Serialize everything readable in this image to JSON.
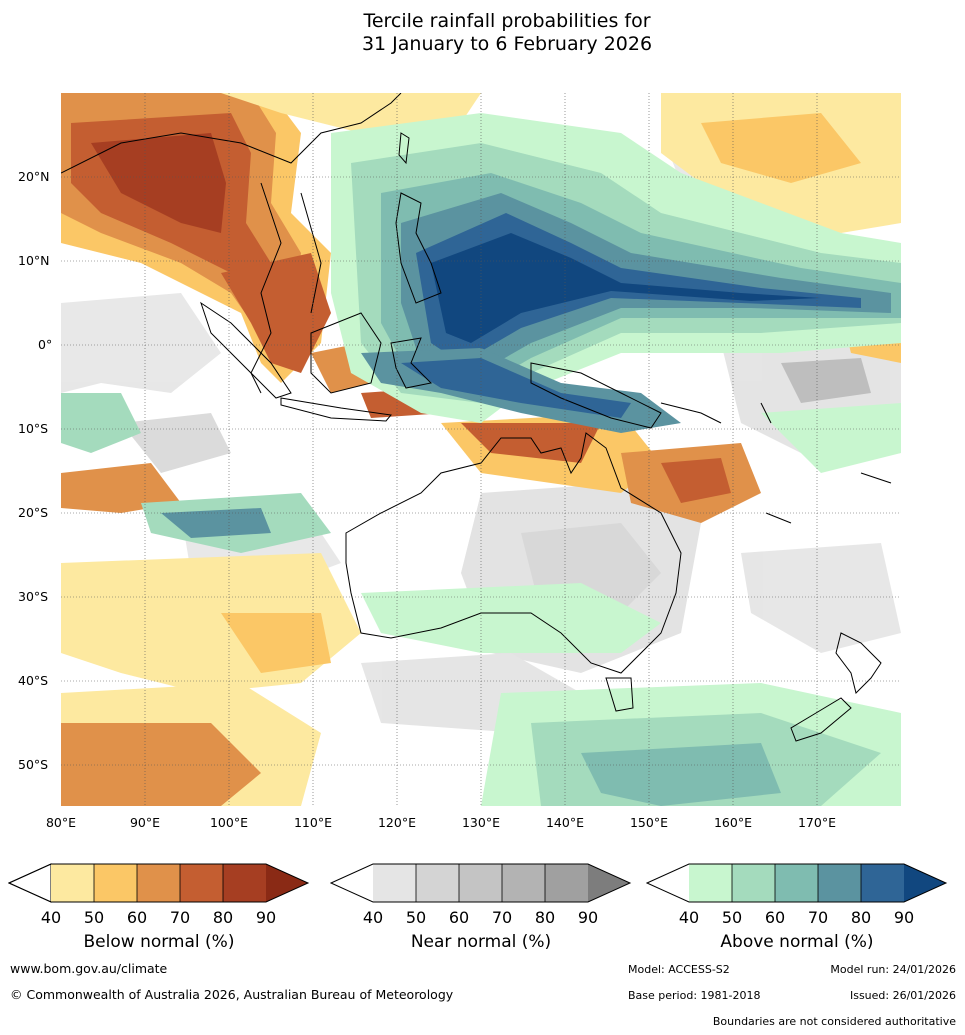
{
  "title": {
    "line1": "Tercile rainfall probabilities for",
    "line2": "31 January to 6 February 2026"
  },
  "axes": {
    "lat_labels": [
      "20°N",
      "10°N",
      "0°",
      "10°S",
      "20°S",
      "30°S",
      "40°S",
      "50°S"
    ],
    "lon_labels": [
      "80°E",
      "90°E",
      "100°E",
      "110°E",
      "120°E",
      "130°E",
      "140°E",
      "150°E",
      "160°E",
      "170°E"
    ]
  },
  "legends": [
    {
      "caption": "Below normal (%)",
      "ticks": [
        "40",
        "50",
        "60",
        "70",
        "80",
        "90"
      ],
      "colors": [
        "#ffffff",
        "#fde9a0",
        "#fbc766",
        "#e0914a",
        "#c45e31",
        "#a63e22",
        "#8a2a15"
      ]
    },
    {
      "caption": "Near normal (%)",
      "ticks": [
        "40",
        "50",
        "60",
        "70",
        "80",
        "90"
      ],
      "colors": [
        "#ffffff",
        "#e5e5e5",
        "#d4d4d4",
        "#c4c4c4",
        "#b3b3b3",
        "#a0a0a0",
        "#7d7d7d"
      ]
    },
    {
      "caption": "Above normal (%)",
      "ticks": [
        "40",
        "50",
        "60",
        "70",
        "80",
        "90"
      ],
      "colors": [
        "#ffffff",
        "#c8f6cf",
        "#a4dbbd",
        "#7fbcb0",
        "#5b93a0",
        "#2f6596",
        "#11477f"
      ]
    }
  ],
  "footer": {
    "url": "www.bom.gov.au/climate",
    "copyright": "© Commonwealth of Australia 2026, Australian Bureau of Meteorology",
    "model": "Model: ACCESS-S2",
    "model_run": "Model run: 24/01/2026",
    "base_period": "Base period: 1981-2018",
    "issued": "Issued: 26/01/2026",
    "disclaimer": "Boundaries are not considered authoritative"
  }
}
